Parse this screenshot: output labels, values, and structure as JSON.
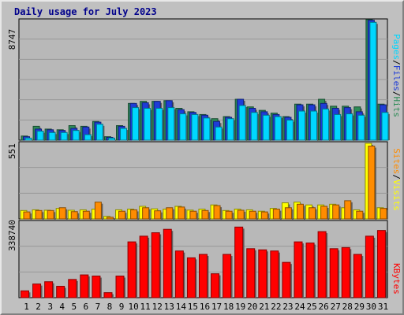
{
  "colors": {
    "background": "#c0c0c0",
    "plot_bg": "#b8b8b8",
    "grid": "#999999",
    "hits": "#2e8b57",
    "files": "#1e3cd7",
    "pages": "#00d7ff",
    "visits": "#ffff00",
    "sites": "#ff8c00",
    "kbytes": "#ff0000",
    "weekend_label": "#006400",
    "weekday_label": "#000000",
    "title": "#00008b"
  },
  "chart_data": {
    "type": "bar",
    "title": "Daily usage for July 2023",
    "days": [
      "1",
      "2",
      "3",
      "4",
      "5",
      "6",
      "7",
      "8",
      "9",
      "10",
      "11",
      "12",
      "13",
      "14",
      "15",
      "16",
      "17",
      "18",
      "19",
      "20",
      "21",
      "22",
      "23",
      "24",
      "25",
      "26",
      "27",
      "28",
      "29",
      "30",
      "31"
    ],
    "weekend_days": [
      "1",
      "2",
      "8",
      "9",
      "15",
      "16",
      "22",
      "23",
      "29",
      "30"
    ],
    "top_panel": {
      "ymax": 8747,
      "ymax_label": "8747",
      "legend": [
        "Pages",
        "/",
        "Files",
        "/",
        "Hits"
      ],
      "series": [
        {
          "name": "Hits",
          "values": [
            300,
            1000,
            800,
            750,
            1050,
            1000,
            1350,
            250,
            1050,
            2650,
            2800,
            2800,
            2850,
            2300,
            2050,
            1850,
            1550,
            1700,
            2950,
            2400,
            2150,
            1950,
            1700,
            2600,
            2600,
            2950,
            2450,
            2450,
            2400,
            8700,
            2600
          ]
        },
        {
          "name": "Files",
          "values": [
            250,
            800,
            750,
            700,
            850,
            950,
            1300,
            200,
            1000,
            2650,
            2700,
            2800,
            2850,
            2200,
            2000,
            1800,
            1350,
            1650,
            2950,
            2300,
            2050,
            1850,
            1650,
            2550,
            2550,
            2650,
            2300,
            2350,
            2050,
            8650,
            2550
          ]
        },
        {
          "name": "Pages",
          "values": [
            150,
            650,
            550,
            550,
            700,
            400,
            1150,
            150,
            850,
            2350,
            2300,
            2300,
            2350,
            1900,
            1850,
            1600,
            950,
            1550,
            2500,
            2000,
            1800,
            1700,
            1450,
            2100,
            2100,
            2250,
            1850,
            1900,
            1800,
            8500,
            2000
          ]
        }
      ]
    },
    "middle_panel": {
      "ymax": 551,
      "ymax_label": "551",
      "legend": [
        "Sites",
        "/",
        "Visits"
      ],
      "series": [
        {
          "name": "Visits",
          "values": [
            60,
            65,
            62,
            75,
            62,
            65,
            70,
            18,
            65,
            70,
            90,
            72,
            70,
            90,
            63,
            70,
            100,
            60,
            70,
            65,
            55,
            75,
            115,
            120,
            100,
            100,
            105,
            80,
            65,
            540,
            80
          ]
        },
        {
          "name": "Sites",
          "values": [
            50,
            60,
            60,
            80,
            52,
            55,
            120,
            12,
            55,
            65,
            80,
            58,
            80,
            85,
            55,
            60,
            95,
            55,
            62,
            55,
            50,
            70,
            80,
            105,
            80,
            90,
            100,
            130,
            55,
            520,
            75
          ]
        }
      ]
    },
    "bottom_panel": {
      "ymax": 338740,
      "ymax_label": "338740",
      "legend": [
        "KBytes"
      ],
      "series": [
        {
          "name": "KBytes",
          "values": [
            30000,
            60000,
            70000,
            50000,
            80000,
            100000,
            95000,
            22000,
            95000,
            245000,
            270000,
            285000,
            300000,
            205000,
            175000,
            190000,
            105000,
            190000,
            310000,
            215000,
            210000,
            205000,
            155000,
            245000,
            240000,
            290000,
            215000,
            220000,
            190000,
            270000,
            295000
          ]
        }
      ]
    }
  }
}
